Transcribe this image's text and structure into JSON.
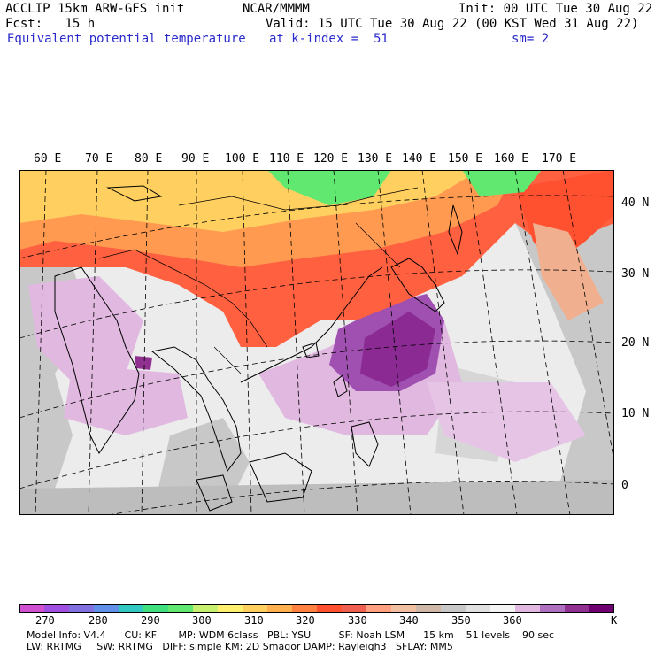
{
  "header": {
    "model_line": "ACCLIP 15km ARW-GFS init",
    "org": "NCAR/MMMM",
    "init": "Init: 00 UTC Tue 30 Aug 22",
    "fcst": "Fcst:   15 h",
    "valid": "Valid: 15 UTC Tue 30 Aug 22 (00 KST Wed 31 Aug 22)",
    "field": "Equivalent potential temperature",
    "level": "at k-index =  51",
    "smooth": "sm= 2"
  },
  "map": {
    "lon_labels": [
      "60 E",
      "70 E",
      "80 E",
      "90 E",
      "100 E",
      "110 E",
      "120 E",
      "130 E",
      "140 E",
      "150 E",
      "160 E",
      "170 E"
    ],
    "lat_labels": [
      "40 N",
      "30 N",
      "20 N",
      "10 N",
      "0"
    ]
  },
  "colorbar": {
    "unit": "K",
    "tick_labels": [
      "270",
      "280",
      "290",
      "300",
      "310",
      "320",
      "330",
      "340",
      "350",
      "360"
    ],
    "colors": [
      "#d050d0",
      "#a050e0",
      "#8070e0",
      "#6090e8",
      "#30c8c0",
      "#40e080",
      "#60e870",
      "#c8f070",
      "#fff070",
      "#ffd060",
      "#ffb050",
      "#ff8040",
      "#ff5030",
      "#f06050",
      "#ffa080",
      "#f0c0a0",
      "#d0b8a8",
      "#c8c8c8",
      "#e0e0e0",
      "#f4f4f4",
      "#e0b8e0",
      "#b070c0",
      "#903090",
      "#700070"
    ]
  },
  "footer": {
    "line1": "Model Info: V4.4      CU: KF       MP: WDM 6class   PBL: YSU         SF: Noah LSM      15 km    51 levels    90 sec",
    "line2": "LW: RRTMG     SW: RRTMG   DIFF: simple KM: 2D Smagor DAMP: Rayleigh3   SFLAY: MM5"
  }
}
